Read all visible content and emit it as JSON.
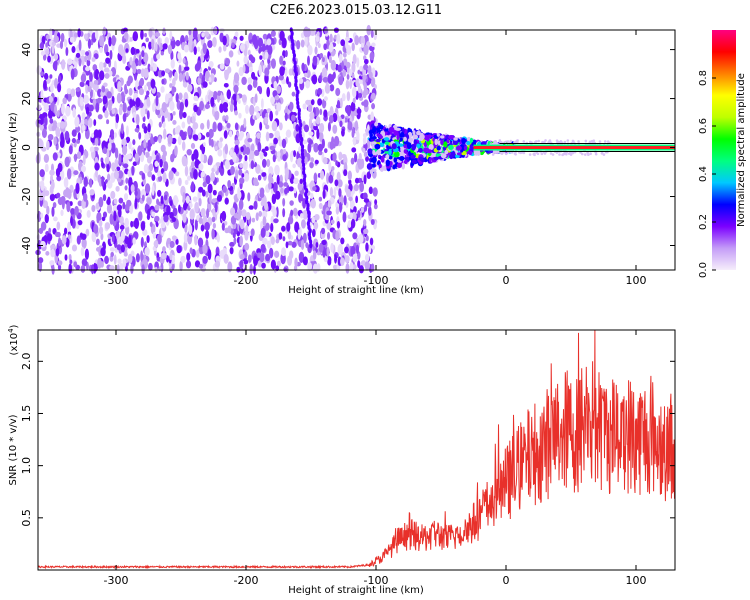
{
  "title": "C2E6.2023.015.03.12.G11",
  "chart_data": [
    {
      "type": "heatmap",
      "xlabel": "Height of straight line (km)",
      "ylabel": "Frequency (Hz)",
      "xlim": [
        -360,
        130
      ],
      "ylim": [
        -50,
        48
      ],
      "xticks": [
        -300,
        -200,
        -100,
        0,
        100
      ],
      "yticks": [
        -40,
        -20,
        0,
        20,
        40
      ],
      "colorbar": {
        "label": "Normalized spectral amplitude",
        "range": [
          0.0,
          1.0
        ],
        "ticks": [
          "0.0",
          "0.2",
          "0.4",
          "0.6",
          "0.8"
        ],
        "colormap": [
          "#f6eefb",
          "#c49cf7",
          "#7b00ff",
          "#0000ff",
          "#00c8ff",
          "#00ff80",
          "#00ff00",
          "#bfff00",
          "#ffff00",
          "#ff8000",
          "#ff0000",
          "#ff0080"
        ]
      },
      "features": {
        "noise_region_x": [
          -360,
          -100
        ],
        "signal_line_frequency": 0,
        "signal_onset_x": -105,
        "drift_line": {
          "x": [
            -165,
            -150
          ],
          "y": [
            48,
            -40
          ]
        }
      }
    },
    {
      "type": "line",
      "xlabel": "Height of straight line (km)",
      "ylabel": "SNR (10 * v/v)",
      "yscale_label": "(x10",
      "yscale_exp": "4",
      "xlim": [
        -360,
        130
      ],
      "ylim": [
        0,
        2.3
      ],
      "xticks": [
        -300,
        -200,
        -100,
        0,
        100
      ],
      "yticks": [
        "0.5",
        "1.0",
        "1.5",
        "2.0"
      ],
      "series": [
        {
          "color": "#e8302a",
          "x": [
            -360,
            -300,
            -200,
            -120,
            -105,
            -95,
            -85,
            -75,
            -65,
            -55,
            -45,
            -35,
            -25,
            -15,
            -5,
            5,
            15,
            25,
            35,
            45,
            55,
            62,
            70,
            80,
            90,
            100,
            110,
            120,
            130
          ],
          "y": [
            0.03,
            0.03,
            0.03,
            0.03,
            0.05,
            0.12,
            0.25,
            0.35,
            0.3,
            0.35,
            0.3,
            0.35,
            0.45,
            0.6,
            0.75,
            0.9,
            1.05,
            1.15,
            1.25,
            1.35,
            1.3,
            1.5,
            1.35,
            1.3,
            1.35,
            1.25,
            1.3,
            1.2,
            1.2
          ]
        }
      ]
    }
  ]
}
